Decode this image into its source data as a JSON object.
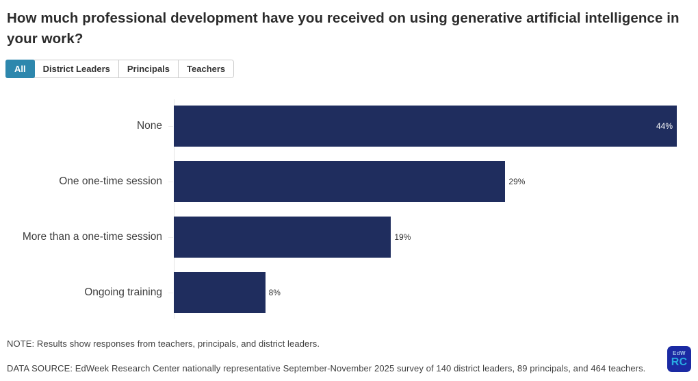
{
  "page": {
    "title": "How much professional development have you received on using generative artificial intelligence in your work?"
  },
  "tabs": [
    {
      "label": "All",
      "selected": true
    },
    {
      "label": "District Leaders",
      "selected": false
    },
    {
      "label": "Principals",
      "selected": false
    },
    {
      "label": "Teachers",
      "selected": false
    }
  ],
  "chart_data": {
    "type": "bar",
    "orientation": "horizontal",
    "title": "How much professional development have you received on using generative artificial intelligence in your work?",
    "categories": [
      "None",
      "One one-time session",
      "More than a one-time session",
      "Ongoing training"
    ],
    "values": [
      44,
      29,
      19,
      8
    ],
    "value_labels": [
      "44%",
      "29%",
      "19%",
      "8%"
    ],
    "xlim": [
      0,
      44
    ],
    "grid": false,
    "legend": "none",
    "bar_color": "#1f2d5e"
  },
  "footer": {
    "note": "NOTE: Results show responses from teachers, principals, and district leaders.",
    "data_source": "DATA SOURCE: EdWeek Research Center nationally representative September-November 2025 survey of 140 district leaders, 89 principals, and 464 teachers.",
    "logo": {
      "top": "EdW",
      "bottom": "RC"
    }
  },
  "colors": {
    "bar": "#1f2d5e",
    "tab_selected_bg": "#2d87ad",
    "tab_selected_text": "#ffffff",
    "logo_bg": "#1b2aa3",
    "logo_top_text": "#9fc3e8",
    "logo_bottom_text": "#29abe2"
  }
}
